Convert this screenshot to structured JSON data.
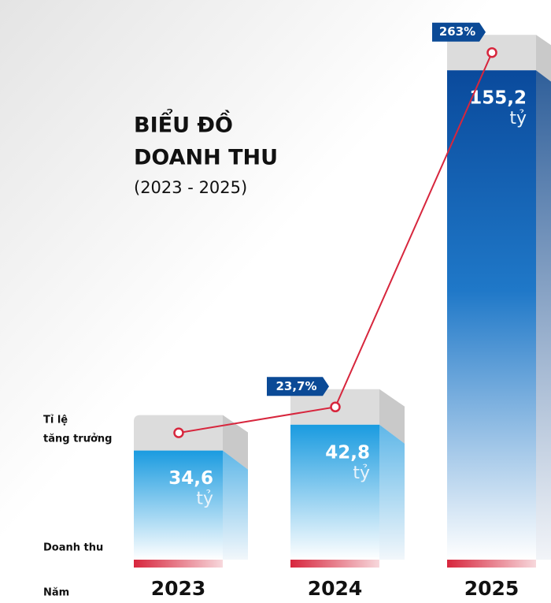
{
  "chart_data": {
    "type": "bar",
    "title_lines": [
      "BIỂU ĐỒ",
      "DOANH THU"
    ],
    "subtitle": "(2023 - 2025)",
    "row_labels": {
      "growth": [
        "Tỉ lệ",
        "tăng trưởng"
      ],
      "revenue": "Doanh thu",
      "year": "Năm"
    },
    "categories": [
      "2023",
      "2024",
      "2025"
    ],
    "unit": "tỷ",
    "series": [
      {
        "name": "Doanh thu",
        "color": "#1a9be0",
        "values": [
          34.6,
          42.8,
          155.2
        ],
        "value_labels": [
          "34,6",
          "42,8",
          "155,2"
        ]
      },
      {
        "name": "Tỉ lệ tăng trưởng",
        "color": "#d7263d",
        "values": [
          null,
          23.7,
          263
        ],
        "value_labels": [
          null,
          "23,7%",
          "263%"
        ]
      }
    ],
    "ylim": [
      0,
      177.5
    ]
  }
}
